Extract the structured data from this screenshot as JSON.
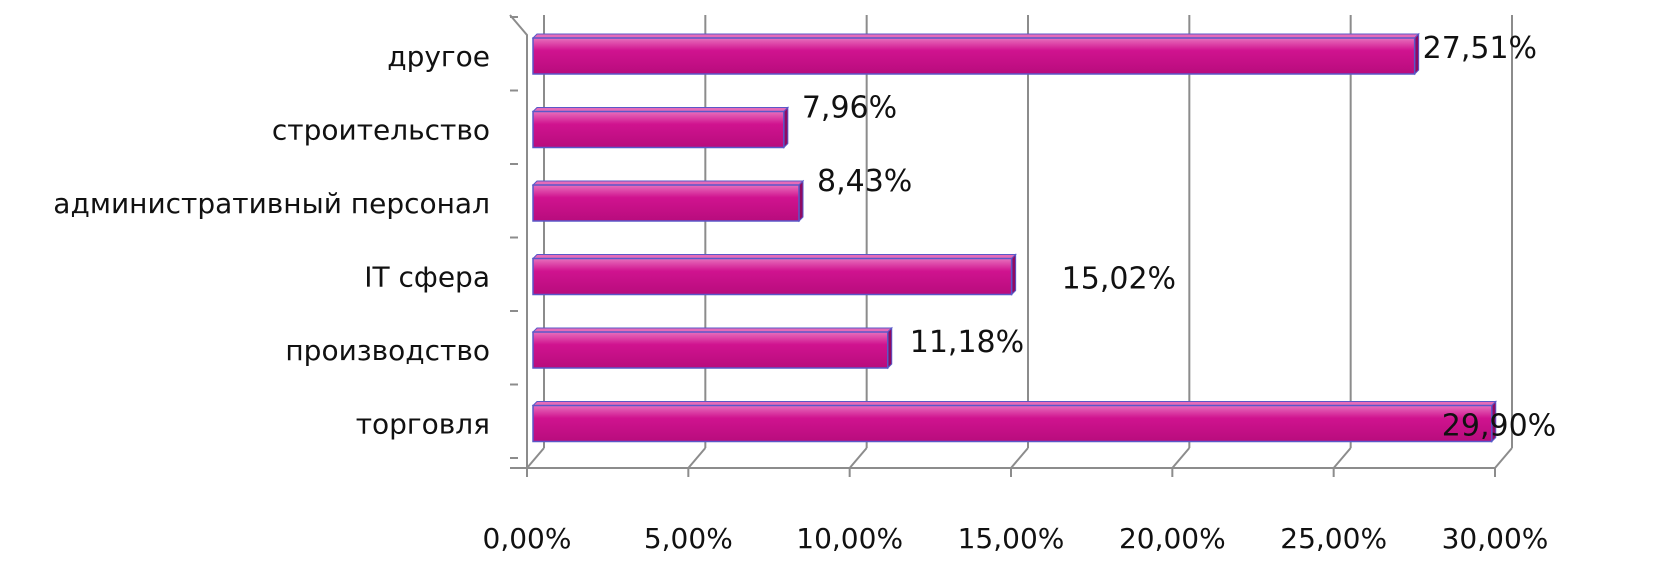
{
  "chart_data": {
    "type": "bar",
    "orientation": "horizontal",
    "style": "3d",
    "title": "",
    "xlabel": "",
    "ylabel": "",
    "categories": [
      "другое",
      "строительство",
      "административный персонал",
      "IT сфера",
      "производство",
      "торговля"
    ],
    "values": [
      27.51,
      7.96,
      8.43,
      15.02,
      11.18,
      29.9
    ],
    "value_labels": [
      "27,51%",
      "7,96%",
      "8,43%",
      "15,02%",
      "11,18%",
      "29,90%"
    ],
    "xlim": [
      0,
      30
    ],
    "x_ticks": [
      0,
      5,
      10,
      15,
      20,
      25,
      30
    ],
    "x_tick_labels": [
      "0,00%",
      "5,00%",
      "10,00%",
      "15,00%",
      "20,00%",
      "25,00%",
      "30,00%"
    ],
    "grid": "vertical",
    "legend": "none",
    "colors": {
      "bar_fill": "#d0138f",
      "bar_top": "#e66bb8",
      "bar_edge": "#5a58c8",
      "grid": "#8c8c8c"
    }
  }
}
